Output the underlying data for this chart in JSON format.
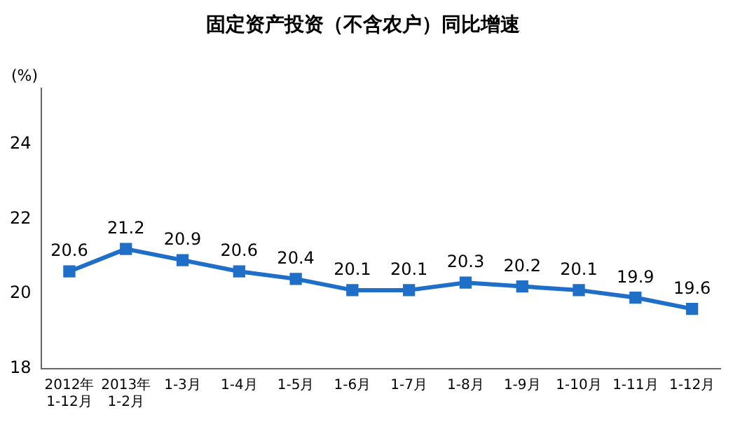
{
  "chart_data": {
    "type": "line",
    "title": "固定资产投资（不含农户）同比增速",
    "ylabel": "(%)",
    "categories": [
      "2012年\n1-12月",
      "2013年\n1-2月",
      "1-3月",
      "1-4月",
      "1-5月",
      "1-6月",
      "1-7月",
      "1-8月",
      "1-9月",
      "1-10月",
      "1-11月",
      "1-12月"
    ],
    "series": [
      {
        "color": "#1f6fc8",
        "values": [
          20.6,
          21.2,
          20.9,
          20.6,
          20.4,
          20.1,
          20.1,
          20.3,
          20.2,
          20.1,
          19.9,
          19.6
        ]
      }
    ],
    "ylim": [
      18,
      25.5
    ],
    "yticks": [
      18,
      20,
      22,
      24
    ],
    "grid": false,
    "legend": false,
    "marker": "square",
    "line_style": "solid",
    "data_labels": true
  }
}
